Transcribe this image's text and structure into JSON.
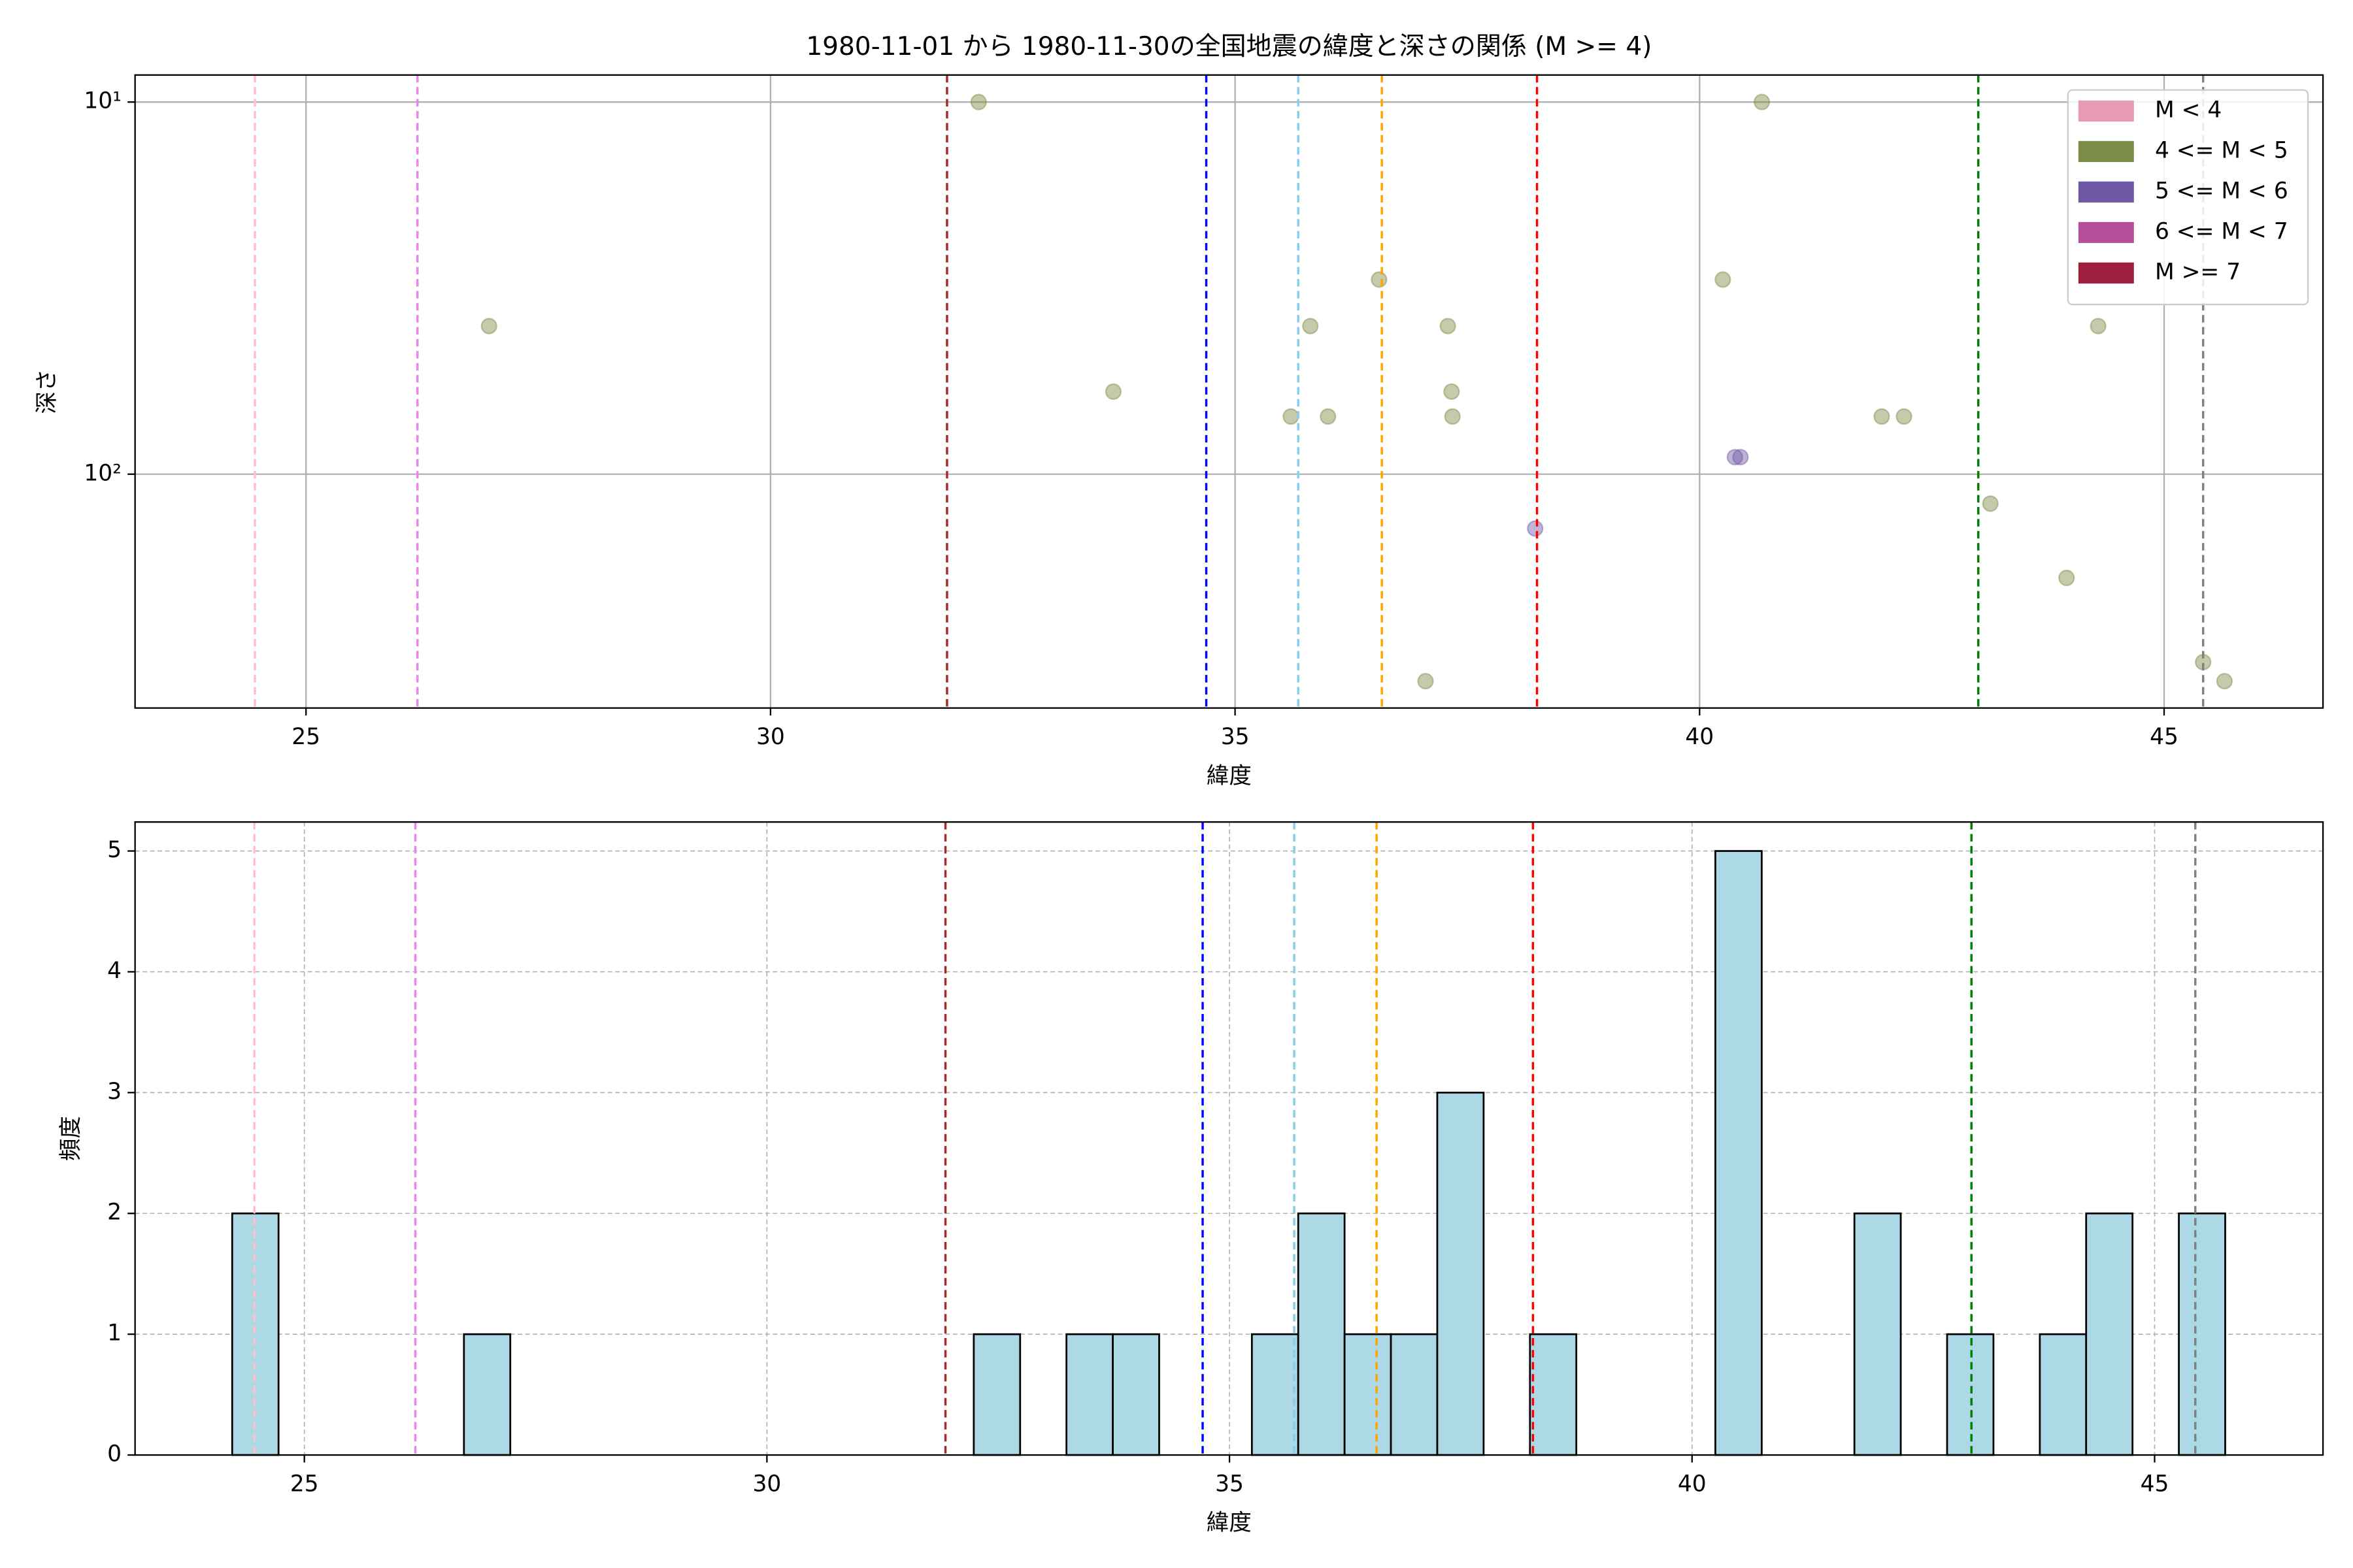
{
  "chart_data": [
    {
      "type": "scatter",
      "title": "1980-11-01 から 1980-11-30の全国地震の緯度と深さの関係 (M >= 4)",
      "xlabel": "緯度",
      "ylabel": "深さ",
      "xlim": [
        23.16,
        46.71
      ],
      "xticks": [
        25,
        30,
        35,
        40,
        45
      ],
      "ylim": [
        8.46,
        425
      ],
      "yscale": "log",
      "yaxis_inverted": true,
      "yticks": [
        {
          "value": 10,
          "label": "10¹"
        },
        {
          "value": 100,
          "label": "10²"
        }
      ],
      "grid": true,
      "grid_style": "solid",
      "legend": "upper right",
      "marker_alpha": 0.45,
      "series": [
        {
          "name": "M < 4",
          "color": "#e899b5",
          "x": [],
          "y": []
        },
        {
          "name": "4 <= M < 5",
          "color": "#7a8c45",
          "x": [
            32.24,
            40.67,
            26.97,
            33.69,
            36.55,
            35.81,
            37.29,
            40.25,
            44.29,
            35.6,
            36.0,
            37.33,
            37.34,
            41.96,
            42.2,
            43.13,
            43.95,
            37.05,
            45.42,
            45.65
          ],
          "y": [
            10,
            10,
            40,
            60,
            30,
            40,
            40,
            30,
            40,
            70,
            70,
            60,
            70,
            70,
            70,
            120,
            190,
            360,
            320,
            360
          ]
        },
        {
          "name": "5 <= M < 6",
          "color": "#7158a6",
          "x": [
            40.38,
            40.44,
            38.23
          ],
          "y": [
            90,
            90,
            140
          ]
        },
        {
          "name": "6 <= M < 7",
          "color": "#b44f9b",
          "x": [],
          "y": []
        },
        {
          "name": "M >= 7",
          "color": "#9e1f3d",
          "x": [],
          "y": []
        }
      ],
      "reference_lines": [
        {
          "x": 24.45,
          "color": "#ffc0cb"
        },
        {
          "x": 26.2,
          "color": "#ee82ee"
        },
        {
          "x": 31.9,
          "color": "#a52a2a"
        },
        {
          "x": 34.69,
          "color": "#0000ff"
        },
        {
          "x": 35.68,
          "color": "#87ceeb"
        },
        {
          "x": 36.58,
          "color": "#ffa500"
        },
        {
          "x": 38.25,
          "color": "#ff0000"
        },
        {
          "x": 43.0,
          "color": "#008000"
        },
        {
          "x": 45.42,
          "color": "#808080"
        }
      ]
    },
    {
      "type": "histogram",
      "xlabel": "緯度",
      "ylabel": "頻度",
      "xlim": [
        23.17,
        46.82
      ],
      "xticks": [
        25,
        30,
        35,
        40,
        45
      ],
      "ylim": [
        0,
        5.24
      ],
      "yticks": [
        0,
        1,
        2,
        3,
        4,
        5
      ],
      "grid": true,
      "grid_style": "dashed",
      "color": "#add8e6",
      "edgecolor": "#000000",
      "bins": [
        24.22,
        24.721,
        25.222,
        25.723,
        26.224,
        26.725,
        27.226,
        27.727,
        28.228,
        28.729,
        29.23,
        29.731,
        30.232,
        30.733,
        31.234,
        31.735,
        32.236,
        32.737,
        33.238,
        33.739,
        34.24,
        34.741,
        35.242,
        35.743,
        36.244,
        36.745,
        37.246,
        37.747,
        38.248,
        38.749,
        39.25,
        39.751,
        40.252,
        40.753,
        41.254,
        41.755,
        42.256,
        42.757,
        43.258,
        43.759,
        44.26,
        44.761,
        45.262,
        45.763
      ],
      "values": [
        2,
        0,
        0,
        0,
        0,
        1,
        0,
        0,
        0,
        0,
        0,
        0,
        0,
        0,
        0,
        0,
        1,
        0,
        1,
        1,
        0,
        0,
        1,
        2,
        1,
        1,
        3,
        0,
        1,
        0,
        0,
        0,
        5,
        0,
        0,
        2,
        0,
        1,
        0,
        1,
        2,
        0,
        2
      ],
      "reference_lines": [
        {
          "x": 24.46,
          "color": "#ffc0cb"
        },
        {
          "x": 26.2,
          "color": "#ee82ee"
        },
        {
          "x": 31.93,
          "color": "#a52a2a"
        },
        {
          "x": 34.71,
          "color": "#0000ff"
        },
        {
          "x": 35.7,
          "color": "#87ceeb"
        },
        {
          "x": 36.59,
          "color": "#ffa500"
        },
        {
          "x": 38.28,
          "color": "#ff0000"
        },
        {
          "x": 43.02,
          "color": "#008000"
        },
        {
          "x": 45.44,
          "color": "#808080"
        }
      ]
    }
  ]
}
